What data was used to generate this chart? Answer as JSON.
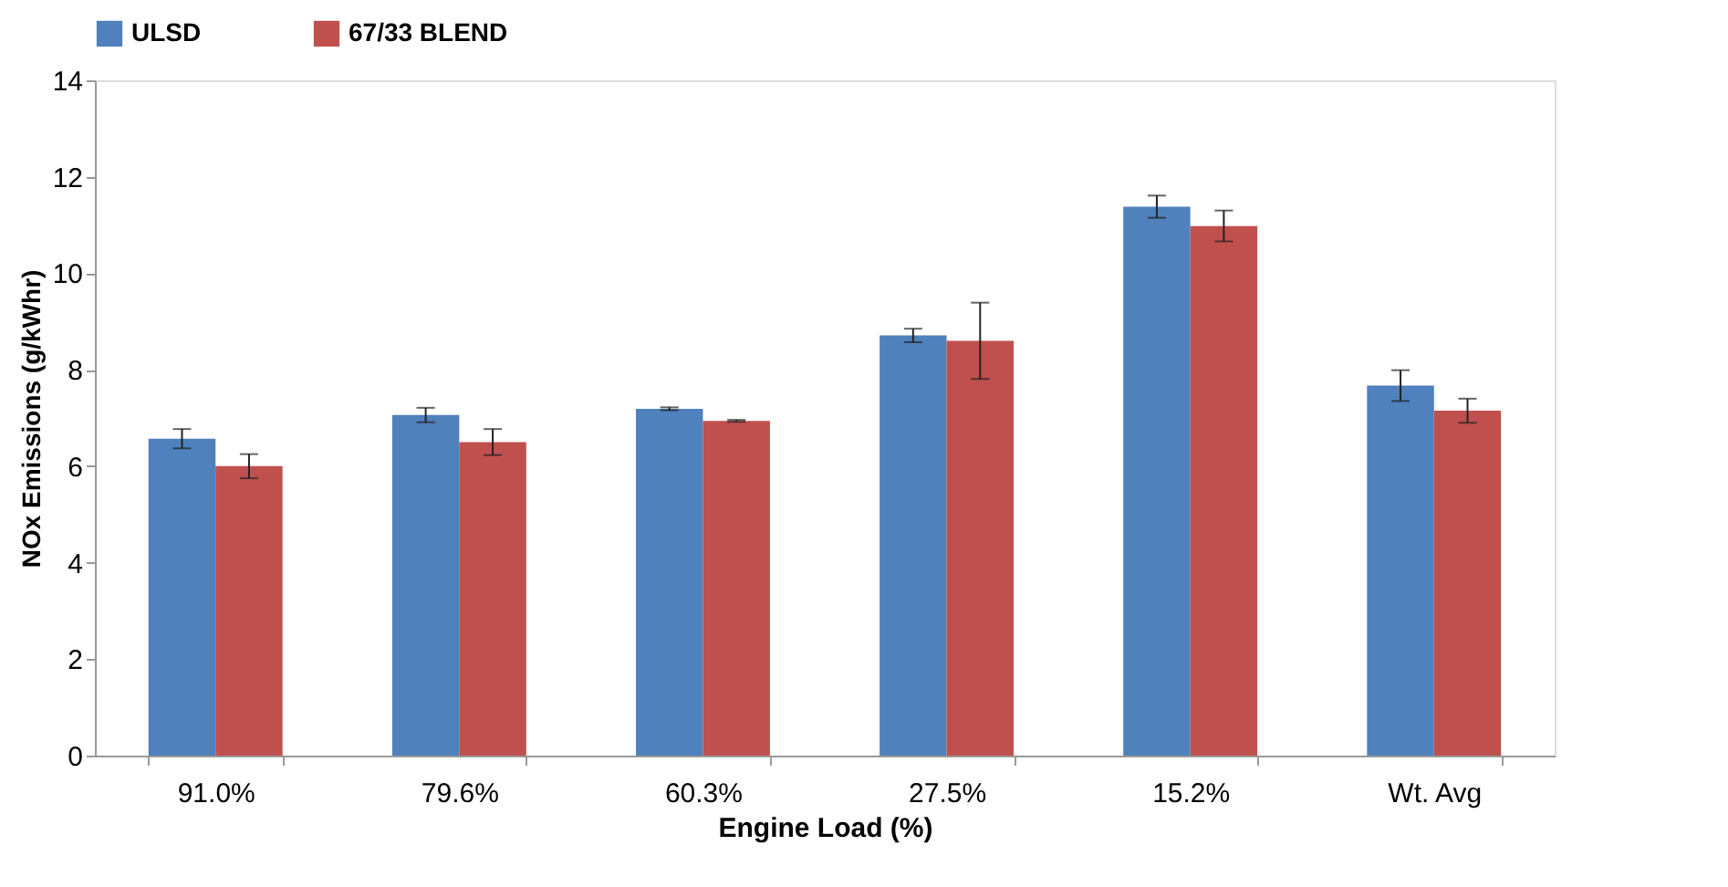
{
  "chart_data": {
    "type": "bar",
    "xlabel": "Engine Load (%)",
    "ylabel": "NOx Emissions (g/kWhr)",
    "categories": [
      "91.0%",
      "79.6%",
      "60.3%",
      "27.5%",
      "15.2%",
      "Wt. Avg"
    ],
    "series": [
      {
        "name": "ULSD",
        "color": "#4f81bd",
        "values": [
          6.57,
          7.06,
          7.19,
          8.71,
          11.38,
          7.67
        ],
        "errors": [
          0.2,
          0.15,
          0.03,
          0.14,
          0.23,
          0.32
        ]
      },
      {
        "name": "67/33 BLEND",
        "color": "#c0504d",
        "values": [
          6.0,
          6.5,
          6.94,
          8.6,
          10.98,
          7.15
        ],
        "errors": [
          0.25,
          0.27,
          0.02,
          0.79,
          0.32,
          0.25
        ]
      }
    ],
    "ylim": [
      0,
      14
    ],
    "yticks": [
      0,
      2,
      4,
      6,
      8,
      10,
      12,
      14
    ],
    "legend": "top",
    "grid": false
  }
}
